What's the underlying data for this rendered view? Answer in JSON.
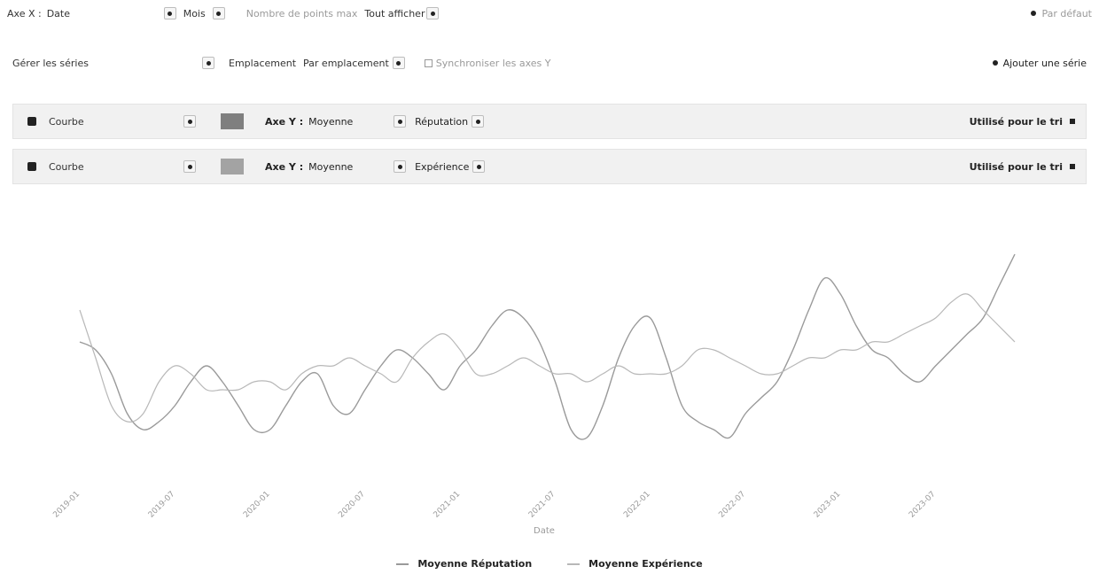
{
  "toolbar": {
    "xaxis_label": "Axe X :",
    "xaxis_value": "Date",
    "group_label": "Mois",
    "points_label": "Nombre de points max",
    "points_value": "Tout afficher",
    "reset_label": "Par défaut"
  },
  "series_controls": {
    "label": "Gérer les séries",
    "placement_label": "Emplacement",
    "placement_value": "Par emplacement",
    "sync_label": "Synchroniser les axes Y",
    "add_label": "Ajouter une série"
  },
  "series_rows": [
    {
      "type": "Courbe",
      "axis_label": "Axe Y :",
      "axis_value": "Moyenne",
      "column": "Réputation",
      "use_label": "Utilisé pour le tri"
    },
    {
      "type": "Courbe",
      "axis_label": "Axe Y :",
      "axis_value": "Moyenne",
      "column": "Expérience",
      "use_label": "Utilisé pour le tri"
    }
  ],
  "chart_data": {
    "type": "line",
    "xlabel": "Date",
    "x": [
      "2019-01",
      "2019-02",
      "2019-03",
      "2019-04",
      "2019-05",
      "2019-06",
      "2019-07",
      "2019-08",
      "2019-09",
      "2019-10",
      "2019-11",
      "2019-12",
      "2020-01",
      "2020-02",
      "2020-03",
      "2020-04",
      "2020-05",
      "2020-06",
      "2020-07",
      "2020-08",
      "2020-09",
      "2020-10",
      "2020-11",
      "2020-12",
      "2021-01",
      "2021-02",
      "2021-03",
      "2021-04",
      "2021-05",
      "2021-06",
      "2021-07",
      "2021-08",
      "2021-09",
      "2021-10",
      "2021-11",
      "2021-12",
      "2022-01",
      "2022-02",
      "2022-03",
      "2022-04",
      "2022-05",
      "2022-06",
      "2022-07",
      "2022-08",
      "2022-09",
      "2022-10",
      "2022-11",
      "2022-12",
      "2023-01",
      "2023-02",
      "2023-03",
      "2023-04",
      "2023-05",
      "2023-06",
      "2023-07",
      "2023-08",
      "2023-09",
      "2023-10",
      "2023-11",
      "2023-12"
    ],
    "tick_labels": [
      "2019-01",
      "2019-07",
      "2020-01",
      "2020-07",
      "2021-01",
      "2021-07",
      "2022-01",
      "2022-07",
      "2023-01",
      "2023-07"
    ],
    "series": [
      {
        "name": "Moyenne Réputation",
        "color": "#9a9a9a",
        "values": [
          4.4,
          4.3,
          4.0,
          3.5,
          3.3,
          3.4,
          3.6,
          3.9,
          4.1,
          3.9,
          3.6,
          3.3,
          3.3,
          3.6,
          3.9,
          4.0,
          3.6,
          3.5,
          3.8,
          4.1,
          4.3,
          4.2,
          4.0,
          3.8,
          4.1,
          4.3,
          4.6,
          4.8,
          4.7,
          4.4,
          3.9,
          3.3,
          3.2,
          3.6,
          4.2,
          4.6,
          4.7,
          4.2,
          3.6,
          3.4,
          3.3,
          3.2,
          3.5,
          3.7,
          3.9,
          4.3,
          4.8,
          5.2,
          5.0,
          4.6,
          4.3,
          4.2,
          4.0,
          3.9,
          4.1,
          4.3,
          4.5,
          4.7,
          5.1,
          5.5
        ]
      },
      {
        "name": "Moyenne Expérience",
        "color": "#b8b8b8",
        "values": [
          4.8,
          4.2,
          3.6,
          3.4,
          3.5,
          3.9,
          4.1,
          4.0,
          3.8,
          3.8,
          3.8,
          3.9,
          3.9,
          3.8,
          4.0,
          4.1,
          4.1,
          4.2,
          4.1,
          4.0,
          3.9,
          4.2,
          4.4,
          4.5,
          4.3,
          4.0,
          4.0,
          4.1,
          4.2,
          4.1,
          4.0,
          4.0,
          3.9,
          4.0,
          4.1,
          4.0,
          4.0,
          4.0,
          4.1,
          4.3,
          4.3,
          4.2,
          4.1,
          4.0,
          4.0,
          4.1,
          4.2,
          4.2,
          4.3,
          4.3,
          4.4,
          4.4,
          4.5,
          4.6,
          4.7,
          4.9,
          5.0,
          4.8,
          4.6,
          4.4
        ]
      }
    ],
    "ylim": [
      2.8,
      5.8
    ],
    "legend": "bottom-center"
  }
}
